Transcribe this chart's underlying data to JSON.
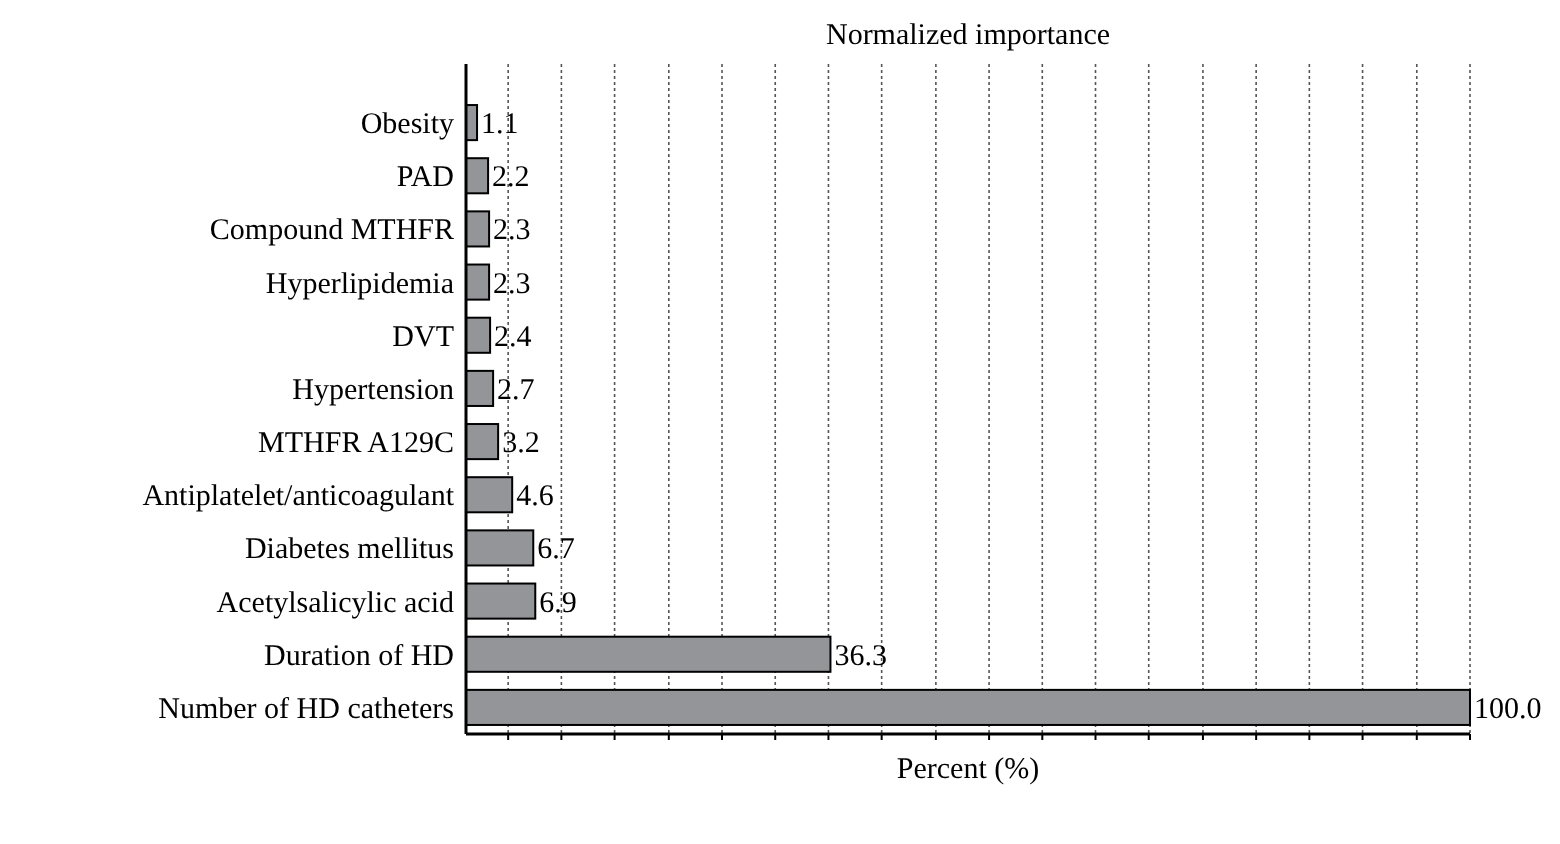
{
  "chart_data": {
    "type": "bar",
    "orientation": "horizontal",
    "title": "Normalized importance",
    "xlabel": "Percent (%)",
    "categories": [
      "Obesity",
      "PAD",
      "Compound MTHFR",
      "Hyperlipidemia",
      "DVT",
      "Hypertension",
      "MTHFR A129C",
      "Antiplatelet/anticoagulant",
      "Diabetes mellitus",
      "Acetylsalicylic acid",
      "Duration of HD",
      "Number of HD catheters"
    ],
    "values": [
      1.1,
      2.2,
      2.3,
      2.3,
      2.4,
      2.7,
      3.2,
      4.6,
      6.7,
      6.9,
      36.3,
      100.0
    ],
    "value_labels": [
      "1.1",
      "2.2",
      "2.3",
      "2.3",
      "2.4",
      "2.7",
      "3.2",
      "4.6",
      "6.7",
      "6.9",
      "36.3",
      "100.0"
    ],
    "color": "#939598",
    "xlim": [
      0,
      100
    ],
    "xticks": [
      {
        "value": 4.2,
        "label": null
      },
      {
        "value": 9.5,
        "label": null
      },
      {
        "value": 14.8,
        "label": null
      },
      {
        "value": 20.2,
        "label": null
      },
      {
        "value": 25.5,
        "label": null
      },
      {
        "value": 30.8,
        "label": null
      },
      {
        "value": 36.1,
        "label": null
      },
      {
        "value": 41.4,
        "label": null
      },
      {
        "value": 46.8,
        "label": null
      },
      {
        "value": 52.1,
        "label": null
      },
      {
        "value": 57.4,
        "label": null
      },
      {
        "value": 62.7,
        "label": null
      },
      {
        "value": 68.0,
        "label": null
      },
      {
        "value": 73.4,
        "label": null
      },
      {
        "value": 78.7,
        "label": null
      },
      {
        "value": 84.0,
        "label": null
      },
      {
        "value": 89.3,
        "label": null
      },
      {
        "value": 94.7,
        "label": null
      },
      {
        "value": 100,
        "label": null
      }
    ],
    "grid": "x",
    "tick_labels": "y"
  }
}
